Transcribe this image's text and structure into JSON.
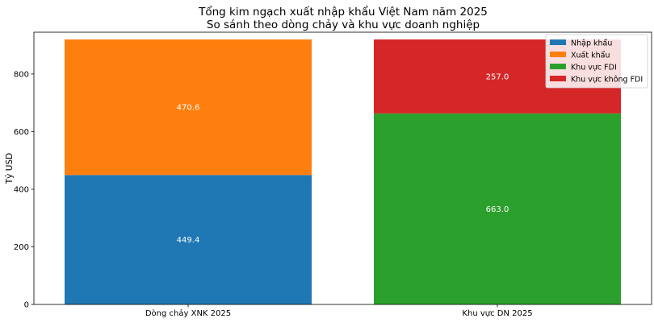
{
  "chart_data": {
    "type": "bar",
    "stacked": true,
    "title_lines": [
      "Tổng kim ngạch xuất nhập khẩu Việt Nam năm 2025",
      "So sánh theo dòng chảy và khu vực doanh nghiệp"
    ],
    "xlabel": "",
    "ylabel": "Tỷ USD",
    "ylim": [
      0,
      945
    ],
    "yticks": [
      0,
      200,
      400,
      600,
      800
    ],
    "categories": [
      "Dòng chảy XNK 2025",
      "Khu vực DN 2025"
    ],
    "segments": [
      {
        "name": "Nhập khẩu",
        "category": 0,
        "bottom": 0,
        "value": 449.4,
        "label": "449.4",
        "color": "#1f77b4"
      },
      {
        "name": "Xuất khẩu",
        "category": 0,
        "bottom": 449.4,
        "value": 470.6,
        "label": "470.6",
        "color": "#ff7f0e"
      },
      {
        "name": "Khu vực FDI",
        "category": 1,
        "bottom": 0,
        "value": 663.0,
        "label": "663.0",
        "color": "#2ca02c"
      },
      {
        "name": "Khu vực không FDI",
        "category": 1,
        "bottom": 663.0,
        "value": 257.0,
        "label": "257.0",
        "color": "#d62728"
      }
    ],
    "legend": {
      "placement": "top-right",
      "entries": [
        {
          "label": "Nhập khẩu",
          "color": "#1f77b4"
        },
        {
          "label": "Xuất khẩu",
          "color": "#ff7f0e"
        },
        {
          "label": "Khu vực FDI",
          "color": "#2ca02c"
        },
        {
          "label": "Khu vực không FDI",
          "color": "#d62728"
        }
      ]
    },
    "grid": false
  }
}
